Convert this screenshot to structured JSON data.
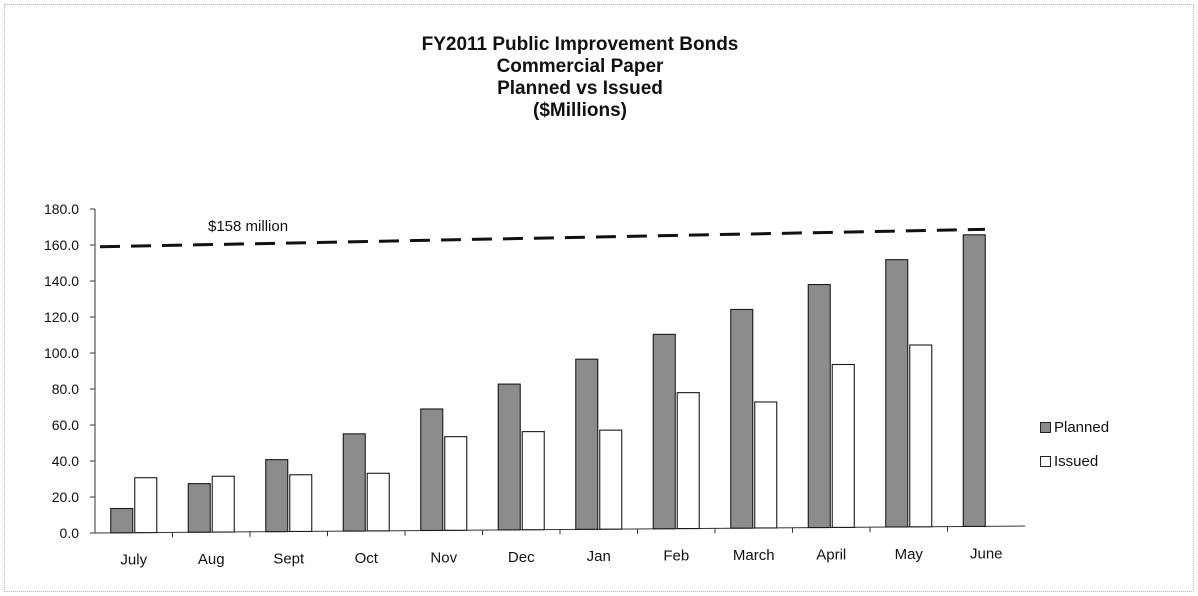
{
  "chart_data": {
    "type": "bar",
    "title_lines": [
      "FY2011 Public Improvement Bonds",
      "Commercial Paper",
      "Planned vs Issued",
      "($Millions)"
    ],
    "categories": [
      "July",
      "Aug",
      "Sept",
      "Oct",
      "Nov",
      "Dec",
      "Jan",
      "Feb",
      "March",
      "April",
      "May",
      "June"
    ],
    "series": [
      {
        "name": "Planned",
        "color": "#8c8c8c",
        "values": [
          13.5,
          27.0,
          40.0,
          54.0,
          67.5,
          81.0,
          94.5,
          108.0,
          121.5,
          135.0,
          148.5,
          162.0
        ]
      },
      {
        "name": "Issued",
        "color": "#ffffff",
        "values": [
          30.5,
          31.0,
          31.5,
          32.0,
          52.0,
          54.5,
          55.0,
          75.5,
          70.0,
          90.5,
          101.0,
          null
        ]
      }
    ],
    "yticks": [
      "0.0",
      "20.0",
      "40.0",
      "60.0",
      "80.0",
      "100.0",
      "120.0",
      "140.0",
      "160.0",
      "180.0"
    ],
    "ylim": [
      0,
      180
    ],
    "reference_line": {
      "label": "$158 million",
      "value_start": 159,
      "value_end": 165,
      "style": "dashed"
    },
    "legend_position": "right",
    "grid": false
  }
}
